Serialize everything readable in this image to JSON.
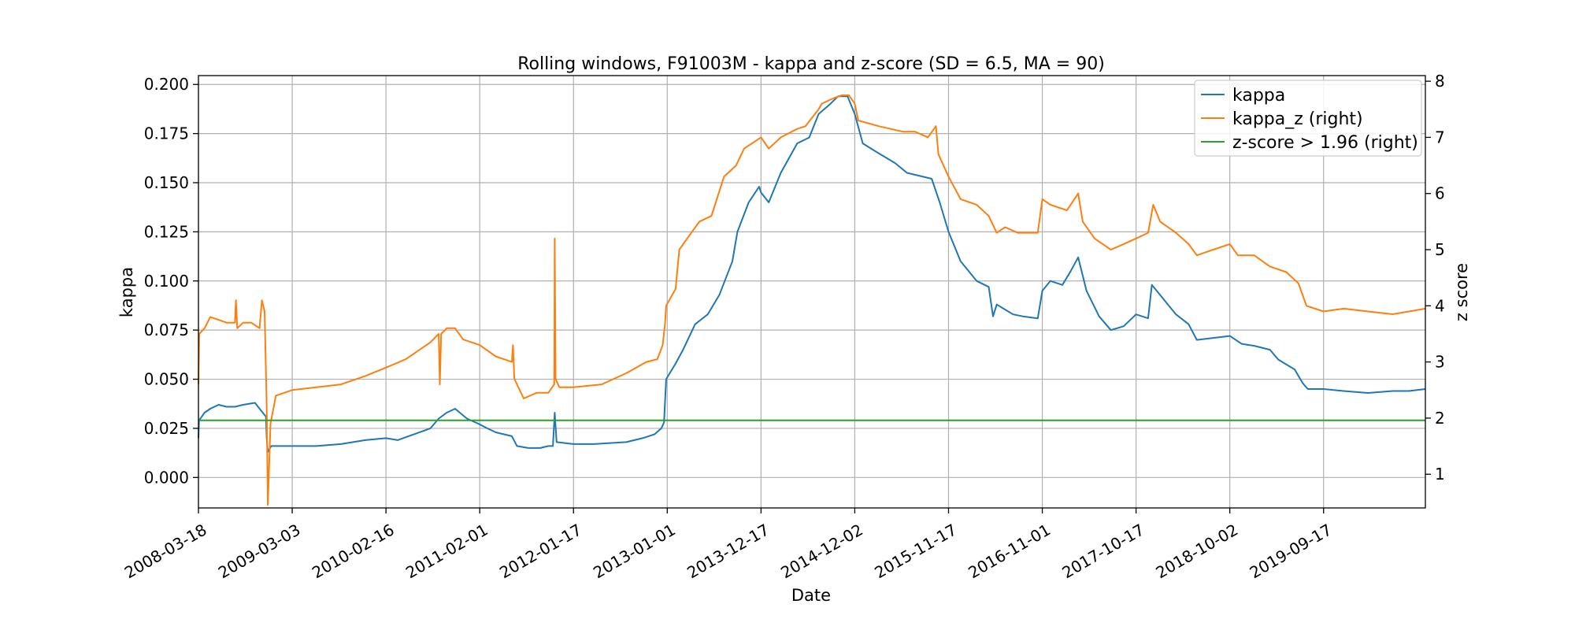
{
  "chart_data": {
    "type": "line",
    "title": "Rolling windows, F91003M - kappa and z-score (SD = 6.5, MA = 90)",
    "xlabel": "Date",
    "ylabel": "kappa",
    "ylabel_right": "z score",
    "x_ticks": [
      "2008-03-18",
      "2009-03-03",
      "2010-02-16",
      "2011-02-01",
      "2012-01-17",
      "2013-01-01",
      "2013-12-17",
      "2014-12-02",
      "2015-11-17",
      "2016-11-01",
      "2017-10-17",
      "2018-10-02",
      "2019-09-17"
    ],
    "xlim": [
      "2008-03-18",
      "2020-10-01"
    ],
    "ylim": [
      -0.0155,
      0.2045
    ],
    "ylim_right": [
      0.4,
      8.1
    ],
    "y_ticks": [
      "0.000",
      "0.025",
      "0.050",
      "0.075",
      "0.100",
      "0.125",
      "0.150",
      "0.175",
      "0.200"
    ],
    "y_ticks_right": [
      "1",
      "2",
      "3",
      "4",
      "5",
      "6",
      "7",
      "8"
    ],
    "grid": true,
    "legend_position": "top-right",
    "series": [
      {
        "name": "kappa",
        "axis": "left",
        "color": "#1f77b4",
        "points": [
          [
            "2008-03-18",
            0.02
          ],
          [
            "2008-03-20",
            0.029
          ],
          [
            "2008-04-10",
            0.033
          ],
          [
            "2008-05-01",
            0.035
          ],
          [
            "2008-06-01",
            0.037
          ],
          [
            "2008-07-01",
            0.036
          ],
          [
            "2008-08-01",
            0.036
          ],
          [
            "2008-09-01",
            0.037
          ],
          [
            "2008-10-15",
            0.038
          ],
          [
            "2008-11-01",
            0.035
          ],
          [
            "2008-11-25",
            0.031
          ],
          [
            "2008-11-28",
            0.02
          ],
          [
            "2008-12-02",
            0.013
          ],
          [
            "2008-12-15",
            0.016
          ],
          [
            "2009-01-01",
            0.016
          ],
          [
            "2009-03-03",
            0.016
          ],
          [
            "2009-06-01",
            0.016
          ],
          [
            "2009-09-01",
            0.017
          ],
          [
            "2009-12-01",
            0.019
          ],
          [
            "2010-02-16",
            0.02
          ],
          [
            "2010-04-01",
            0.019
          ],
          [
            "2010-06-01",
            0.022
          ],
          [
            "2010-08-01",
            0.025
          ],
          [
            "2010-09-01",
            0.03
          ],
          [
            "2010-10-01",
            0.033
          ],
          [
            "2010-11-01",
            0.035
          ],
          [
            "2010-12-15",
            0.03
          ],
          [
            "2011-02-01",
            0.027
          ],
          [
            "2011-03-01",
            0.025
          ],
          [
            "2011-04-01",
            0.023
          ],
          [
            "2011-05-01",
            0.022
          ],
          [
            "2011-06-01",
            0.021
          ],
          [
            "2011-06-20",
            0.016
          ],
          [
            "2011-08-01",
            0.015
          ],
          [
            "2011-09-15",
            0.015
          ],
          [
            "2011-10-15",
            0.016
          ],
          [
            "2011-11-01",
            0.016
          ],
          [
            "2011-11-08",
            0.033
          ],
          [
            "2011-11-15",
            0.018
          ],
          [
            "2012-01-17",
            0.017
          ],
          [
            "2012-04-01",
            0.017
          ],
          [
            "2012-08-01",
            0.018
          ],
          [
            "2012-10-01",
            0.02
          ],
          [
            "2012-11-15",
            0.022
          ],
          [
            "2012-12-10",
            0.025
          ],
          [
            "2012-12-20",
            0.028
          ],
          [
            "2012-12-28",
            0.05
          ],
          [
            "2013-02-01",
            0.058
          ],
          [
            "2013-03-01",
            0.065
          ],
          [
            "2013-04-15",
            0.078
          ],
          [
            "2013-06-01",
            0.083
          ],
          [
            "2013-07-15",
            0.093
          ],
          [
            "2013-09-01",
            0.11
          ],
          [
            "2013-09-20",
            0.125
          ],
          [
            "2013-11-01",
            0.14
          ],
          [
            "2013-12-10",
            0.148
          ],
          [
            "2013-12-17",
            0.145
          ],
          [
            "2014-01-15",
            0.14
          ],
          [
            "2014-03-01",
            0.155
          ],
          [
            "2014-05-01",
            0.17
          ],
          [
            "2014-06-15",
            0.173
          ],
          [
            "2014-07-20",
            0.185
          ],
          [
            "2014-09-01",
            0.19
          ],
          [
            "2014-10-01",
            0.194
          ],
          [
            "2014-11-05",
            0.194
          ],
          [
            "2014-12-02",
            0.185
          ],
          [
            "2015-01-01",
            0.17
          ],
          [
            "2015-03-01",
            0.165
          ],
          [
            "2015-05-01",
            0.16
          ],
          [
            "2015-06-15",
            0.155
          ],
          [
            "2015-09-15",
            0.152
          ],
          [
            "2015-10-15",
            0.14
          ],
          [
            "2015-11-17",
            0.125
          ],
          [
            "2016-01-01",
            0.11
          ],
          [
            "2016-03-01",
            0.1
          ],
          [
            "2016-04-15",
            0.097
          ],
          [
            "2016-05-01",
            0.082
          ],
          [
            "2016-05-15",
            0.088
          ],
          [
            "2016-07-15",
            0.083
          ],
          [
            "2016-08-20",
            0.082
          ],
          [
            "2016-10-15",
            0.081
          ],
          [
            "2016-11-01",
            0.095
          ],
          [
            "2016-12-01",
            0.1
          ],
          [
            "2017-01-15",
            0.098
          ],
          [
            "2017-02-15",
            0.105
          ],
          [
            "2017-03-15",
            0.112
          ],
          [
            "2017-04-15",
            0.095
          ],
          [
            "2017-06-01",
            0.082
          ],
          [
            "2017-07-15",
            0.075
          ],
          [
            "2017-09-01",
            0.077
          ],
          [
            "2017-10-17",
            0.083
          ],
          [
            "2017-12-01",
            0.081
          ],
          [
            "2017-12-15",
            0.098
          ],
          [
            "2018-02-01",
            0.09
          ],
          [
            "2018-03-15",
            0.083
          ],
          [
            "2018-05-01",
            0.078
          ],
          [
            "2018-06-01",
            0.07
          ],
          [
            "2018-08-01",
            0.071
          ],
          [
            "2018-10-02",
            0.072
          ],
          [
            "2018-11-15",
            0.068
          ],
          [
            "2019-01-01",
            0.067
          ],
          [
            "2019-03-01",
            0.065
          ],
          [
            "2019-04-01",
            0.06
          ],
          [
            "2019-06-01",
            0.055
          ],
          [
            "2019-07-01",
            0.048
          ],
          [
            "2019-07-20",
            0.045
          ],
          [
            "2019-09-17",
            0.045
          ],
          [
            "2019-12-01",
            0.044
          ],
          [
            "2020-03-01",
            0.043
          ],
          [
            "2020-06-01",
            0.044
          ],
          [
            "2020-08-01",
            0.044
          ],
          [
            "2020-10-01",
            0.045
          ]
        ]
      },
      {
        "name": "kappa_z (right)",
        "axis": "right",
        "color": "#ff7f0e",
        "points": [
          [
            "2008-03-18",
            2.6
          ],
          [
            "2008-03-21",
            3.5
          ],
          [
            "2008-04-10",
            3.6
          ],
          [
            "2008-05-01",
            3.8
          ],
          [
            "2008-06-01",
            3.75
          ],
          [
            "2008-07-01",
            3.7
          ],
          [
            "2008-08-01",
            3.7
          ],
          [
            "2008-08-05",
            4.1
          ],
          [
            "2008-08-10",
            3.6
          ],
          [
            "2008-09-01",
            3.7
          ],
          [
            "2008-10-01",
            3.7
          ],
          [
            "2008-11-01",
            3.6
          ],
          [
            "2008-11-10",
            4.1
          ],
          [
            "2008-11-20",
            3.9
          ],
          [
            "2008-11-28",
            2.2
          ],
          [
            "2008-12-02",
            0.45
          ],
          [
            "2008-12-12",
            1.9
          ],
          [
            "2009-01-01",
            2.4
          ],
          [
            "2009-03-03",
            2.5
          ],
          [
            "2009-06-01",
            2.55
          ],
          [
            "2009-09-01",
            2.6
          ],
          [
            "2009-12-01",
            2.75
          ],
          [
            "2010-02-16",
            2.9
          ],
          [
            "2010-05-01",
            3.05
          ],
          [
            "2010-08-01",
            3.35
          ],
          [
            "2010-09-01",
            3.5
          ],
          [
            "2010-09-05",
            2.6
          ],
          [
            "2010-09-10",
            3.5
          ],
          [
            "2010-10-01",
            3.6
          ],
          [
            "2010-11-01",
            3.6
          ],
          [
            "2010-12-01",
            3.4
          ],
          [
            "2011-02-01",
            3.3
          ],
          [
            "2011-04-01",
            3.1
          ],
          [
            "2011-06-01",
            3.0
          ],
          [
            "2011-06-05",
            3.3
          ],
          [
            "2011-06-10",
            2.7
          ],
          [
            "2011-07-15",
            2.35
          ],
          [
            "2011-09-01",
            2.45
          ],
          [
            "2011-10-15",
            2.45
          ],
          [
            "2011-11-06",
            2.6
          ],
          [
            "2011-11-08",
            5.2
          ],
          [
            "2011-11-11",
            2.7
          ],
          [
            "2011-11-25",
            2.55
          ],
          [
            "2012-01-17",
            2.55
          ],
          [
            "2012-05-01",
            2.6
          ],
          [
            "2012-08-01",
            2.8
          ],
          [
            "2012-10-15",
            3.0
          ],
          [
            "2012-11-25",
            3.05
          ],
          [
            "2012-12-15",
            3.3
          ],
          [
            "2012-12-24",
            3.7
          ],
          [
            "2012-12-28",
            4.0
          ],
          [
            "2013-02-01",
            4.3
          ],
          [
            "2013-02-15",
            5.0
          ],
          [
            "2013-04-01",
            5.3
          ],
          [
            "2013-05-01",
            5.5
          ],
          [
            "2013-06-15",
            5.6
          ],
          [
            "2013-08-01",
            6.3
          ],
          [
            "2013-09-15",
            6.5
          ],
          [
            "2013-10-15",
            6.8
          ],
          [
            "2013-12-17",
            7.0
          ],
          [
            "2014-01-15",
            6.8
          ],
          [
            "2014-03-01",
            7.0
          ],
          [
            "2014-05-01",
            7.15
          ],
          [
            "2014-06-01",
            7.2
          ],
          [
            "2014-07-20",
            7.5
          ],
          [
            "2014-08-01",
            7.6
          ],
          [
            "2014-09-15",
            7.7
          ],
          [
            "2014-10-15",
            7.75
          ],
          [
            "2014-11-10",
            7.75
          ],
          [
            "2014-12-02",
            7.6
          ],
          [
            "2014-12-15",
            7.3
          ],
          [
            "2015-03-01",
            7.2
          ],
          [
            "2015-06-01",
            7.1
          ],
          [
            "2015-07-15",
            7.1
          ],
          [
            "2015-09-01",
            7.0
          ],
          [
            "2015-10-01",
            7.2
          ],
          [
            "2015-10-10",
            6.7
          ],
          [
            "2015-11-17",
            6.3
          ],
          [
            "2016-01-01",
            5.9
          ],
          [
            "2016-03-01",
            5.8
          ],
          [
            "2016-04-15",
            5.6
          ],
          [
            "2016-05-15",
            5.3
          ],
          [
            "2016-06-15",
            5.4
          ],
          [
            "2016-08-01",
            5.3
          ],
          [
            "2016-10-15",
            5.3
          ],
          [
            "2016-11-01",
            5.9
          ],
          [
            "2016-12-01",
            5.8
          ],
          [
            "2017-02-01",
            5.7
          ],
          [
            "2017-03-15",
            6.0
          ],
          [
            "2017-04-01",
            5.5
          ],
          [
            "2017-05-15",
            5.2
          ],
          [
            "2017-07-15",
            5.0
          ],
          [
            "2017-09-01",
            5.1
          ],
          [
            "2017-10-17",
            5.2
          ],
          [
            "2017-12-01",
            5.3
          ],
          [
            "2017-12-20",
            5.8
          ],
          [
            "2018-01-15",
            5.5
          ],
          [
            "2018-03-15",
            5.3
          ],
          [
            "2018-05-01",
            5.1
          ],
          [
            "2018-06-01",
            4.9
          ],
          [
            "2018-08-01",
            5.0
          ],
          [
            "2018-10-02",
            5.1
          ],
          [
            "2018-11-01",
            4.9
          ],
          [
            "2019-01-01",
            4.9
          ],
          [
            "2019-03-01",
            4.7
          ],
          [
            "2019-05-01",
            4.6
          ],
          [
            "2019-06-15",
            4.4
          ],
          [
            "2019-07-15",
            4.0
          ],
          [
            "2019-09-17",
            3.9
          ],
          [
            "2019-12-01",
            3.95
          ],
          [
            "2020-03-01",
            3.9
          ],
          [
            "2020-06-01",
            3.85
          ],
          [
            "2020-08-01",
            3.9
          ],
          [
            "2020-10-01",
            3.95
          ]
        ]
      },
      {
        "name": "z-score > 1.96 (right)",
        "axis": "right",
        "color": "#2ca02c",
        "points": [
          [
            "2008-03-18",
            1.96
          ],
          [
            "2020-10-01",
            1.96
          ]
        ]
      }
    ]
  }
}
